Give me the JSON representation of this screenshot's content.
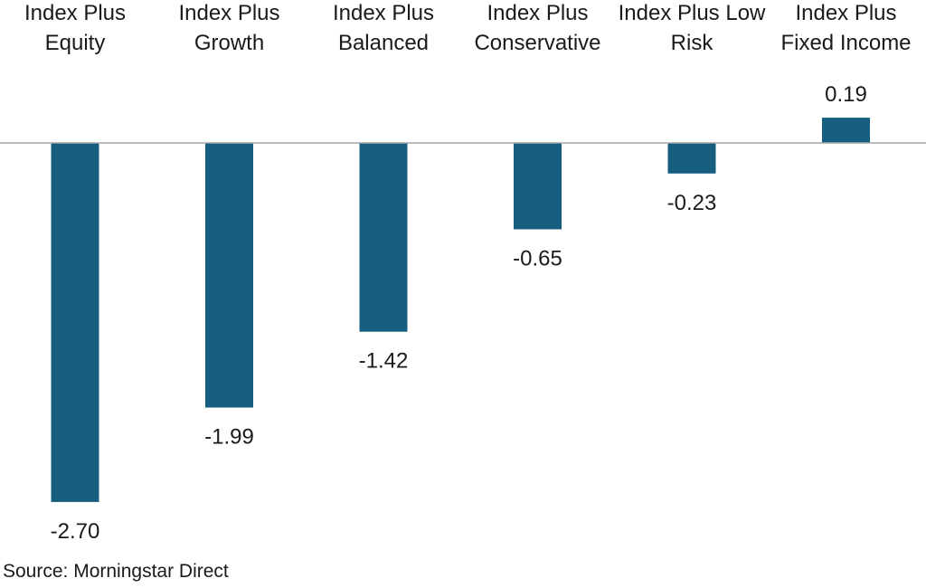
{
  "chart_data": {
    "type": "bar",
    "categories": [
      [
        "Index Plus",
        "Equity"
      ],
      [
        "Index Plus",
        "Growth"
      ],
      [
        "Index Plus",
        "Balanced"
      ],
      [
        "Index Plus",
        "Conservative"
      ],
      [
        "Index Plus Low",
        "Risk"
      ],
      [
        "Index Plus",
        "Fixed Income"
      ]
    ],
    "values": [
      -2.7,
      -1.99,
      -1.42,
      -0.65,
      -0.23,
      0.19
    ],
    "value_labels": [
      "-2.70",
      "-1.99",
      "-1.42",
      "-0.65",
      "-0.23",
      "0.19"
    ],
    "title": "",
    "xlabel": "",
    "ylabel": "",
    "bar_color": "#165e80",
    "baseline_color": "#a6a6a6",
    "grid": false,
    "legend": "none"
  },
  "source": "Source: Morningstar Direct"
}
